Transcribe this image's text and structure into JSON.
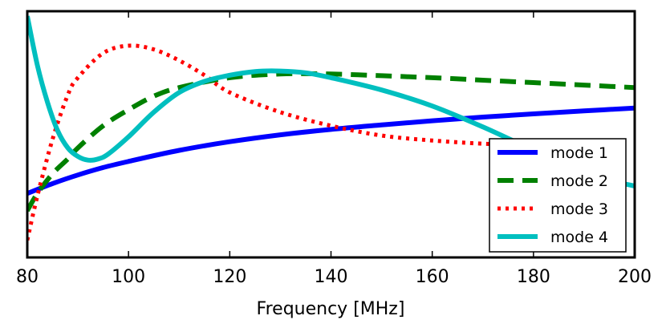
{
  "chart_data": {
    "type": "line",
    "title": "",
    "xlabel": "Frequency [MHz]",
    "ylabel": "",
    "xlim": [
      80,
      200
    ],
    "ylim": [
      0,
      10
    ],
    "x_ticks": [
      "80",
      "100",
      "120",
      "140",
      "160",
      "180",
      "200"
    ],
    "y_ticks_visible": false,
    "grid": false,
    "legend_position": "lower-right",
    "series": [
      {
        "name": "mode 1",
        "color": "#0000ff",
        "style": "solid",
        "x": [
          80,
          85,
          90,
          95,
          100,
          110,
          120,
          130,
          140,
          150,
          160,
          170,
          180,
          190,
          200
        ],
        "y": [
          2.6,
          3.0,
          3.35,
          3.65,
          3.9,
          4.35,
          4.7,
          4.98,
          5.2,
          5.38,
          5.55,
          5.7,
          5.83,
          5.95,
          6.07
        ]
      },
      {
        "name": "mode 2",
        "color": "#008000",
        "style": "dashed",
        "x": [
          80,
          82,
          85,
          88,
          90,
          95,
          100,
          105,
          110,
          120,
          130,
          140,
          150,
          160,
          170,
          180,
          190,
          200
        ],
        "y": [
          1.9,
          2.6,
          3.4,
          4.0,
          4.45,
          5.35,
          6.0,
          6.55,
          6.9,
          7.3,
          7.45,
          7.45,
          7.38,
          7.3,
          7.2,
          7.1,
          7.0,
          6.9
        ]
      },
      {
        "name": "mode 3",
        "color": "#ff0000",
        "style": "dotted",
        "x": [
          80,
          82,
          85,
          88,
          90,
          95,
          100,
          105,
          110,
          115,
          120,
          130,
          140,
          150,
          160,
          170,
          175
        ],
        "y": [
          0.7,
          2.5,
          4.8,
          6.6,
          7.3,
          8.3,
          8.6,
          8.45,
          8.0,
          7.4,
          6.7,
          5.9,
          5.35,
          4.95,
          4.75,
          4.62,
          4.6
        ]
      },
      {
        "name": "mode 4",
        "color": "#00bfbf",
        "style": "solid",
        "x": [
          80,
          82,
          84,
          86,
          88,
          90,
          92,
          94,
          96,
          100,
          105,
          110,
          115,
          120,
          125,
          130,
          135,
          140,
          150,
          160,
          170,
          180,
          190,
          200
        ],
        "y": [
          9.8,
          7.8,
          6.3,
          5.15,
          4.45,
          4.1,
          3.95,
          4.0,
          4.2,
          4.9,
          5.9,
          6.7,
          7.15,
          7.4,
          7.55,
          7.57,
          7.5,
          7.3,
          6.8,
          6.15,
          5.3,
          4.35,
          3.4,
          2.9
        ]
      }
    ]
  }
}
